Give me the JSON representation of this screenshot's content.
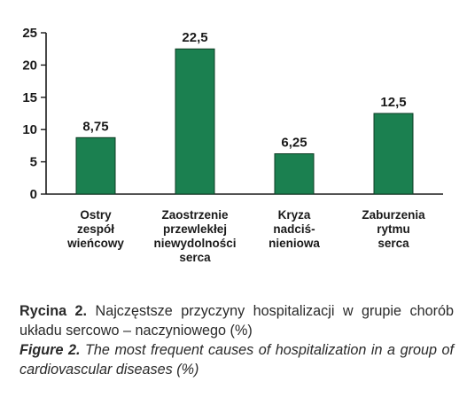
{
  "chart_data": {
    "type": "bar",
    "categories": [
      [
        "Ostry",
        "zespół",
        "wieńcowy"
      ],
      [
        "Zaostrzenie",
        "przewlekłej",
        "niewydolności",
        "serca"
      ],
      [
        "Kryza",
        "nadciś-",
        "nieniowa"
      ],
      [
        "Zaburzenia",
        "rytmu",
        "serca"
      ]
    ],
    "values": [
      8.75,
      22.5,
      6.25,
      12.5
    ],
    "value_labels": [
      "8,75",
      "22,5",
      "6,25",
      "12,5"
    ],
    "yticks": [
      0,
      5,
      10,
      15,
      20,
      25
    ],
    "ylim": [
      0,
      25
    ],
    "grid": false,
    "bar_color": "#1b8050",
    "bar_edge_color": "#0d3d24"
  },
  "caption": {
    "pl_lead": "Rycina 2.",
    "pl_text": " Najczęstsze przyczyny hospitalizacji w grupie chorób układu sercowo – naczyniowego (%)",
    "en_lead": "Figure 2.",
    "en_text": " The most frequent causes of hospitalization in a group of cardiovascular diseases (%)"
  }
}
